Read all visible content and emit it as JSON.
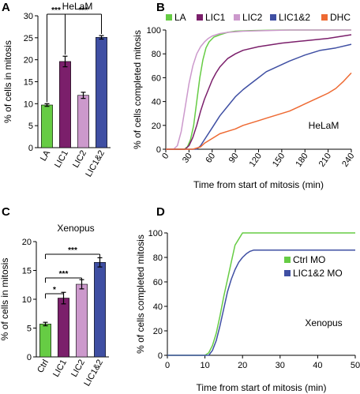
{
  "chart_data": [
    {
      "panel": "A",
      "type": "bar",
      "title": "HeLaM",
      "ylabel": "% of cells in mitosis",
      "ylim": [
        0,
        30
      ],
      "yticks": [
        0,
        5,
        10,
        15,
        20,
        25,
        30
      ],
      "categories": [
        "LA",
        "LIC1",
        "LIC2",
        "LIC1&2"
      ],
      "values": [
        9.7,
        19.6,
        11.9,
        25.1
      ],
      "errors": [
        0.3,
        1.2,
        0.7,
        0.4
      ],
      "colors": [
        "#66cc44",
        "#7b1f6b",
        "#cc99cc",
        "#3f4fa3"
      ],
      "significance": [
        {
          "from": 0,
          "to": 1,
          "label": "***"
        },
        {
          "from": 1,
          "to": 3,
          "label": "***"
        }
      ]
    },
    {
      "panel": "B",
      "type": "line",
      "title": "HeLaM",
      "xlabel": "Time from start of mitosis (min)",
      "ylabel": "% of cells completed mitosis",
      "xlim": [
        0,
        240
      ],
      "ylim": [
        0,
        100
      ],
      "xticks": [
        0,
        30,
        60,
        90,
        120,
        150,
        180,
        210,
        240
      ],
      "yticks": [
        0,
        20,
        40,
        60,
        80,
        100
      ],
      "legend_position": "top",
      "series": [
        {
          "name": "LA",
          "color": "#66cc44",
          "x": [
            0,
            24,
            28,
            32,
            36,
            40,
            44,
            48,
            52,
            56,
            62,
            70,
            80,
            90,
            110,
            150,
            240
          ],
          "y": [
            0,
            0,
            2,
            8,
            20,
            40,
            60,
            75,
            85,
            90,
            94,
            96,
            98,
            99,
            99.5,
            100,
            100
          ]
        },
        {
          "name": "LIC1",
          "color": "#7b1f6b",
          "x": [
            0,
            25,
            30,
            35,
            40,
            45,
            50,
            55,
            60,
            65,
            70,
            80,
            90,
            100,
            120,
            150,
            180,
            210,
            240
          ],
          "y": [
            0,
            0,
            3,
            10,
            20,
            32,
            42,
            50,
            58,
            64,
            69,
            76,
            80,
            83,
            86,
            89,
            91,
            93,
            96
          ]
        },
        {
          "name": "LIC2",
          "color": "#cc99cc",
          "x": [
            0,
            10,
            15,
            20,
            25,
            30,
            35,
            40,
            45,
            50,
            55,
            60,
            70,
            80,
            100,
            130,
            160,
            240
          ],
          "y": [
            0,
            0,
            3,
            15,
            35,
            55,
            70,
            80,
            86,
            90,
            93,
            95,
            97,
            98,
            99,
            99.5,
            100,
            100
          ]
        },
        {
          "name": "LIC1&2",
          "color": "#3f4fa3",
          "x": [
            0,
            40,
            45,
            50,
            60,
            70,
            80,
            90,
            100,
            110,
            120,
            130,
            140,
            150,
            160,
            180,
            200,
            220,
            240
          ],
          "y": [
            0,
            0,
            3,
            8,
            18,
            28,
            36,
            44,
            50,
            55,
            60,
            65,
            68,
            71,
            74,
            79,
            83,
            85,
            88
          ]
        },
        {
          "name": "DHC",
          "color": "#ee6a33",
          "x": [
            0,
            35,
            45,
            50,
            60,
            70,
            80,
            90,
            100,
            110,
            120,
            130,
            140,
            150,
            160,
            170,
            180,
            190,
            200,
            210,
            220,
            230,
            240
          ],
          "y": [
            0,
            0,
            2,
            5,
            9,
            13,
            15,
            17,
            20,
            22,
            24,
            26,
            28,
            30,
            32,
            35,
            38,
            41,
            44,
            47,
            51,
            57,
            64
          ]
        }
      ]
    },
    {
      "panel": "C",
      "type": "bar",
      "title": "Xenopus",
      "ylabel": "% of cells in mitosis",
      "ylim": [
        0,
        20
      ],
      "yticks": [
        0,
        5,
        10,
        15,
        20
      ],
      "categories": [
        "Ctrl",
        "LIC1",
        "LIC2",
        "LIC1&2"
      ],
      "values": [
        5.7,
        10.2,
        12.6,
        16.4
      ],
      "errors": [
        0.3,
        1.0,
        0.8,
        0.8
      ],
      "colors": [
        "#66cc44",
        "#7b1f6b",
        "#cc99cc",
        "#3f4fa3"
      ],
      "significance": [
        {
          "from": 0,
          "to": 1,
          "label": "*"
        },
        {
          "from": 0,
          "to": 2,
          "label": "***"
        },
        {
          "from": 0,
          "to": 3,
          "label": "***"
        }
      ]
    },
    {
      "panel": "D",
      "type": "line",
      "title": "Xenopus",
      "xlabel": "Time from start of mitosis (min)",
      "ylabel": "% of cells completed mitosis",
      "xlim": [
        0,
        50
      ],
      "ylim": [
        0,
        100
      ],
      "xticks": [
        0,
        10,
        20,
        30,
        40,
        50
      ],
      "yticks": [
        0,
        20,
        40,
        60,
        80,
        100
      ],
      "legend_position": "right",
      "series": [
        {
          "name": "Ctrl MO",
          "color": "#66cc44",
          "x": [
            0,
            10,
            11,
            12,
            13,
            14,
            15,
            16,
            17,
            18,
            19,
            20,
            50
          ],
          "y": [
            0,
            0,
            2,
            8,
            18,
            32,
            48,
            62,
            76,
            90,
            95,
            100,
            100
          ]
        },
        {
          "name": "LIC1&2 MO",
          "color": "#3f4fa3",
          "x": [
            0,
            11,
            12,
            13,
            14,
            15,
            16,
            17,
            18,
            19,
            20,
            21,
            22,
            23,
            25,
            50
          ],
          "y": [
            0,
            0,
            4,
            12,
            24,
            38,
            52,
            62,
            70,
            76,
            80,
            83,
            85,
            86,
            86,
            86
          ]
        }
      ]
    }
  ]
}
